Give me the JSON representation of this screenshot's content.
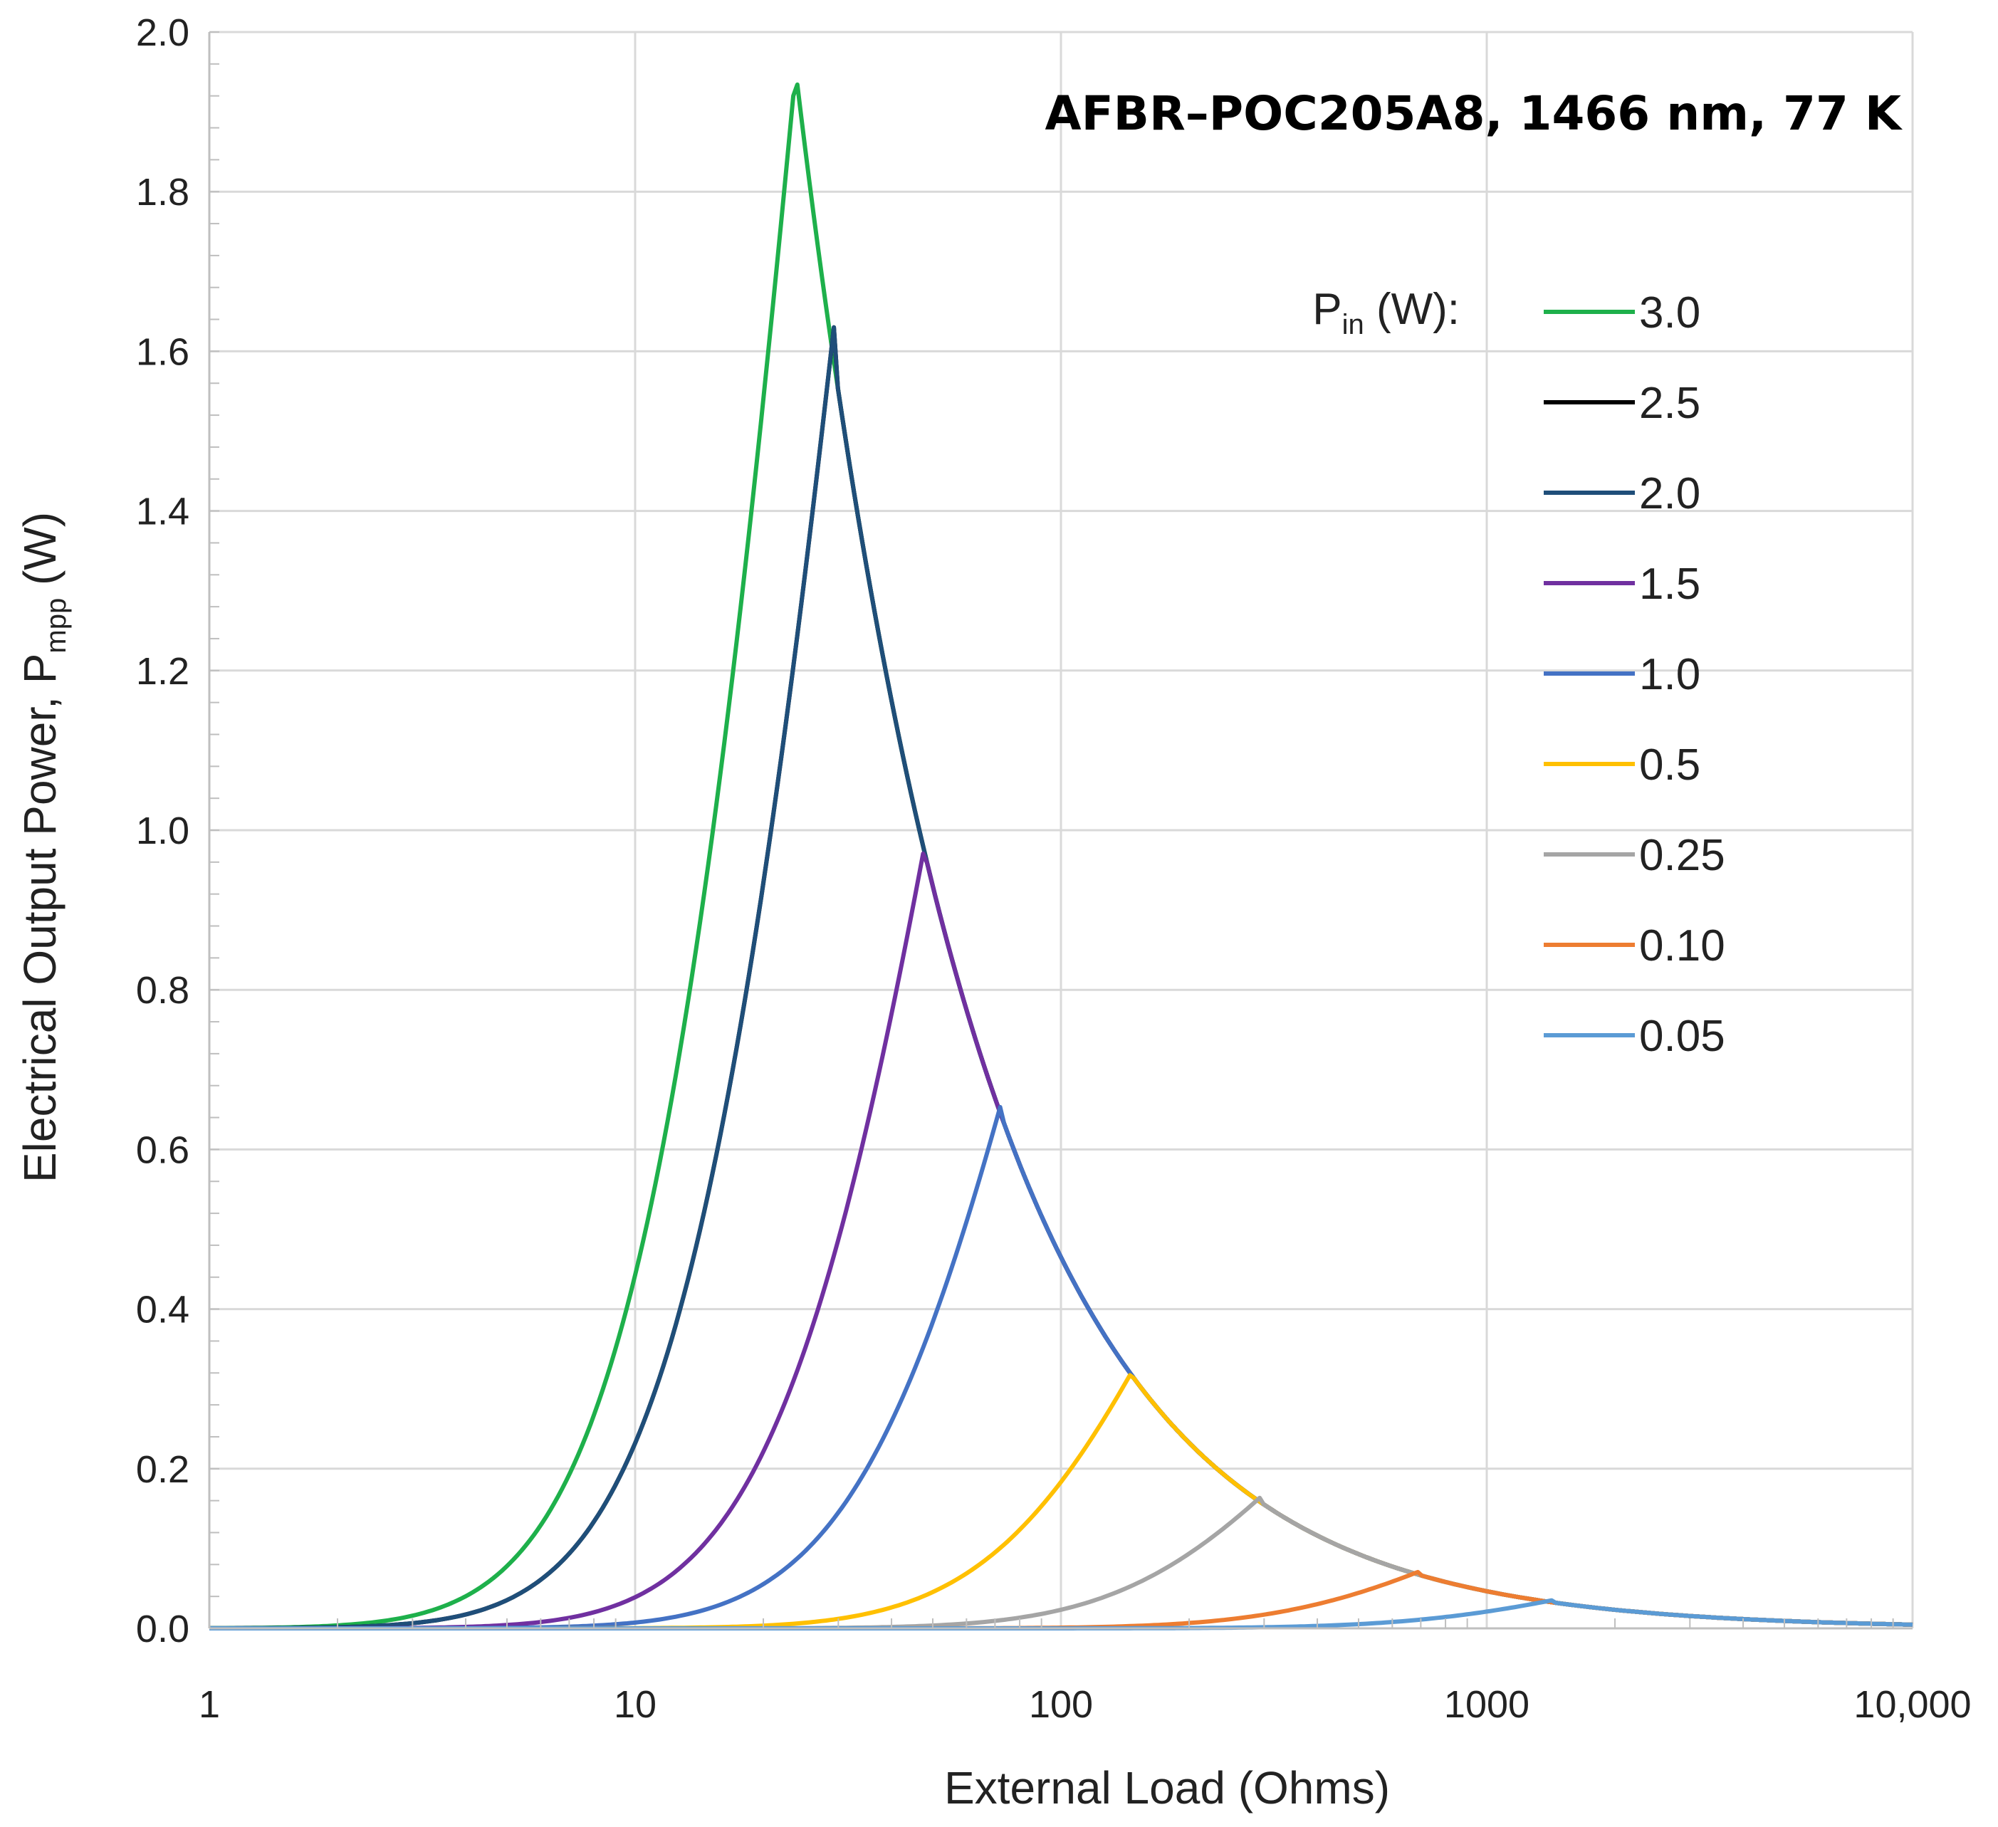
{
  "chart_data": {
    "type": "line",
    "title": "AFBR–POC205A8, 1466 nm, 77 K",
    "xlabel": "External Load (Ohms)",
    "ylabel": {
      "main": "Electrical Output Power, P",
      "sub": "mpp",
      "unit": " (W)"
    },
    "xscale": "log",
    "xlim": [
      1,
      10000
    ],
    "ylim": [
      0,
      2.0
    ],
    "x_ticks": [
      1,
      10,
      100,
      1000,
      10000
    ],
    "x_tick_labels": [
      "1",
      "10",
      "100",
      "1000",
      "10,000"
    ],
    "y_ticks": [
      0,
      0.2,
      0.4,
      0.6,
      0.8,
      1.0,
      1.2,
      1.4,
      1.6,
      1.8,
      2.0
    ],
    "y_tick_labels": [
      "0.0",
      "0.2",
      "0.4",
      "0.6",
      "0.8",
      "1.0",
      "1.2",
      "1.4",
      "1.6",
      "1.8",
      "2.0"
    ],
    "grid": true,
    "legend_title": {
      "main": "P",
      "sub": "in",
      "unit": " (W):"
    },
    "legend_position": "right",
    "series": [
      {
        "name": "3.0",
        "color": "#1eb04b",
        "peak_x": 24,
        "peak_y": 1.97,
        "tail_k": 46.5
      },
      {
        "name": "2.5",
        "color": "#000000",
        "peak_x": 29.5,
        "peak_y": 1.645,
        "tail_k": 46.5
      },
      {
        "name": "2.0",
        "color": "#1f4e79",
        "peak_x": 29.5,
        "peak_y": 1.645,
        "tail_k": 46.5
      },
      {
        "name": "1.5",
        "color": "#7030a0",
        "peak_x": 48,
        "peak_y": 0.985,
        "tail_k": 46.5
      },
      {
        "name": "1.0",
        "color": "#4472c4",
        "peak_x": 73,
        "peak_y": 0.665,
        "tail_k": 46.5
      },
      {
        "name": "0.5",
        "color": "#ffc000",
        "peak_x": 148,
        "peak_y": 0.325,
        "tail_k": 46.5
      },
      {
        "name": "0.25",
        "color": "#a5a5a5",
        "peak_x": 295,
        "peak_y": 0.165,
        "tail_k": 46.5
      },
      {
        "name": "0.10",
        "color": "#ed7d31",
        "peak_x": 700,
        "peak_y": 0.072,
        "tail_k": 46.5
      },
      {
        "name": "0.05",
        "color": "#5b9bd5",
        "peak_x": 1450,
        "peak_y": 0.036,
        "tail_k": 46.5
      }
    ]
  }
}
